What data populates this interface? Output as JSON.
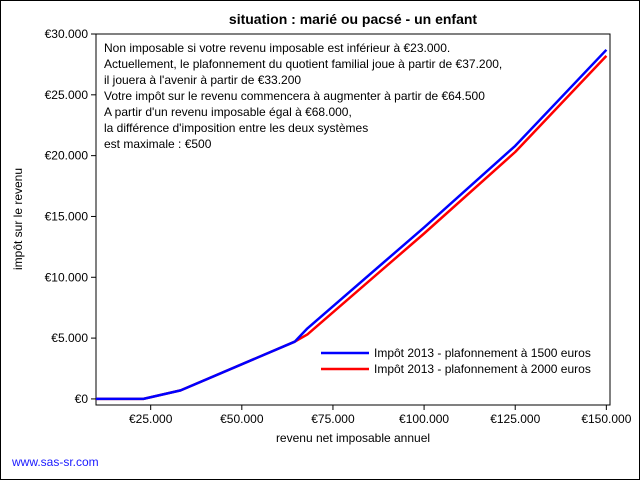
{
  "footer": "www.sas-sr.com",
  "chart_data": {
    "type": "line",
    "title": "situation : marié ou pacsé - un enfant",
    "xlabel": "revenu net imposable annuel",
    "ylabel": "impôt sur le revenu",
    "xlim": [
      10000,
      151000
    ],
    "ylim": [
      -500,
      30000
    ],
    "x_ticks": [
      25000,
      50000,
      75000,
      100000,
      125000,
      150000
    ],
    "x_tick_labels": [
      "€25.000",
      "€50.000",
      "€75.000",
      "€100.000",
      "€125.000",
      "€150.000"
    ],
    "y_ticks": [
      0,
      5000,
      10000,
      15000,
      20000,
      25000,
      30000
    ],
    "y_tick_labels": [
      "€0",
      "€5.000",
      "€10.000",
      "€15.000",
      "€20.000",
      "€25.000",
      "€30.000"
    ],
    "grid": false,
    "legend_position": "bottom-right",
    "annotations": [
      "Non imposable si votre revenu imposable est inférieur à €23.000.",
      "Actuellement, le plafonnement du quotient familial joue à partir de €37.200,",
      "il jouera à l'avenir à partir de €33.200",
      "Votre impôt sur le revenu commencera à augmenter à partir de €64.500",
      "A partir d'un revenu imposable égal à €68.000,",
      "la différence d'imposition entre les deux systèmes",
      "est maximale : €500"
    ],
    "series": [
      {
        "name": "Impôt 2013 - plafonnement à 1500 euros",
        "color": "#0000ff",
        "x": [
          10000,
          23000,
          33200,
          64500,
          68000,
          100000,
          125000,
          150000
        ],
        "y": [
          0,
          0,
          700,
          4700,
          5800,
          14100,
          20800,
          28700
        ]
      },
      {
        "name": "Impôt 2013 - plafonnement à 2000 euros",
        "color": "#ff0000",
        "x": [
          10000,
          23000,
          33200,
          64500,
          68000,
          100000,
          125000,
          150000
        ],
        "y": [
          0,
          0,
          700,
          4700,
          5300,
          13600,
          20300,
          28200
        ]
      }
    ]
  }
}
